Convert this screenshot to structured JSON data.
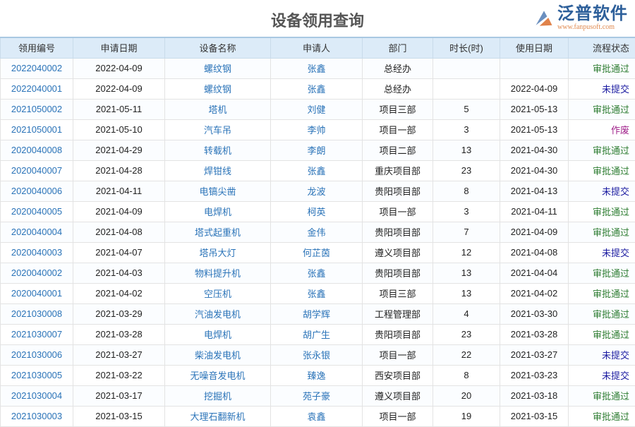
{
  "title": "设备领用查询",
  "columns": [
    "领用编号",
    "申请日期",
    "设备名称",
    "申请人",
    "部门",
    "时长(时)",
    "使用日期",
    "流程状态"
  ],
  "status_colors": {
    "审批通过": "#2e7d32",
    "未提交": "#1a1aa0",
    "作废": "#a0208a"
  },
  "rows": [
    [
      "2022040002",
      "2022-04-09",
      "螺纹钢",
      "张鑫",
      "总经办",
      "",
      "",
      "审批通过"
    ],
    [
      "2022040001",
      "2022-04-09",
      "螺纹钢",
      "张鑫",
      "总经办",
      "",
      "2022-04-09",
      "未提交"
    ],
    [
      "2021050002",
      "2021-05-11",
      "塔机",
      "刘健",
      "项目三部",
      "5",
      "2021-05-13",
      "审批通过"
    ],
    [
      "2021050001",
      "2021-05-10",
      "汽车吊",
      "李帅",
      "项目一部",
      "3",
      "2021-05-13",
      "作废"
    ],
    [
      "2020040008",
      "2021-04-29",
      "转载机",
      "李朗",
      "项目二部",
      "13",
      "2021-04-30",
      "审批通过"
    ],
    [
      "2020040007",
      "2021-04-28",
      "焊钳线",
      "张鑫",
      "重庆项目部",
      "23",
      "2021-04-30",
      "审批通过"
    ],
    [
      "2020040006",
      "2021-04-11",
      "电镐尖凿",
      "龙波",
      "贵阳项目部",
      "8",
      "2021-04-13",
      "未提交"
    ],
    [
      "2020040005",
      "2021-04-09",
      "电焊机",
      "柯英",
      "项目一部",
      "3",
      "2021-04-11",
      "审批通过"
    ],
    [
      "2020040004",
      "2021-04-08",
      "塔式起重机",
      "金伟",
      "贵阳项目部",
      "7",
      "2021-04-09",
      "审批通过"
    ],
    [
      "2020040003",
      "2021-04-07",
      "塔吊大灯",
      "何芷茵",
      "遵义项目部",
      "12",
      "2021-04-08",
      "未提交"
    ],
    [
      "2020040002",
      "2021-04-03",
      "物料提升机",
      "张鑫",
      "贵阳项目部",
      "13",
      "2021-04-04",
      "审批通过"
    ],
    [
      "2020040001",
      "2021-04-02",
      "空压机",
      "张鑫",
      "项目三部",
      "13",
      "2021-04-02",
      "审批通过"
    ],
    [
      "2021030008",
      "2021-03-29",
      "汽油发电机",
      "胡学辉",
      "工程管理部",
      "4",
      "2021-03-30",
      "审批通过"
    ],
    [
      "2021030007",
      "2021-03-28",
      "电焊机",
      "胡广生",
      "贵阳项目部",
      "23",
      "2021-03-28",
      "审批通过"
    ],
    [
      "2021030006",
      "2021-03-27",
      "柴油发电机",
      "张永银",
      "项目一部",
      "22",
      "2021-03-27",
      "未提交"
    ],
    [
      "2021030005",
      "2021-03-22",
      "无噪音发电机",
      "臻逸",
      "西安项目部",
      "8",
      "2021-03-23",
      "未提交"
    ],
    [
      "2021030004",
      "2021-03-17",
      "挖掘机",
      "苑子豪",
      "遵义项目部",
      "20",
      "2021-03-18",
      "审批通过"
    ],
    [
      "2021030003",
      "2021-03-15",
      "大理石翻新机",
      "袁鑫",
      "项目一部",
      "19",
      "2021-03-15",
      "审批通过"
    ]
  ],
  "watermark": {
    "brand": "泛普软件",
    "url": "www.fanpusoft.com"
  }
}
